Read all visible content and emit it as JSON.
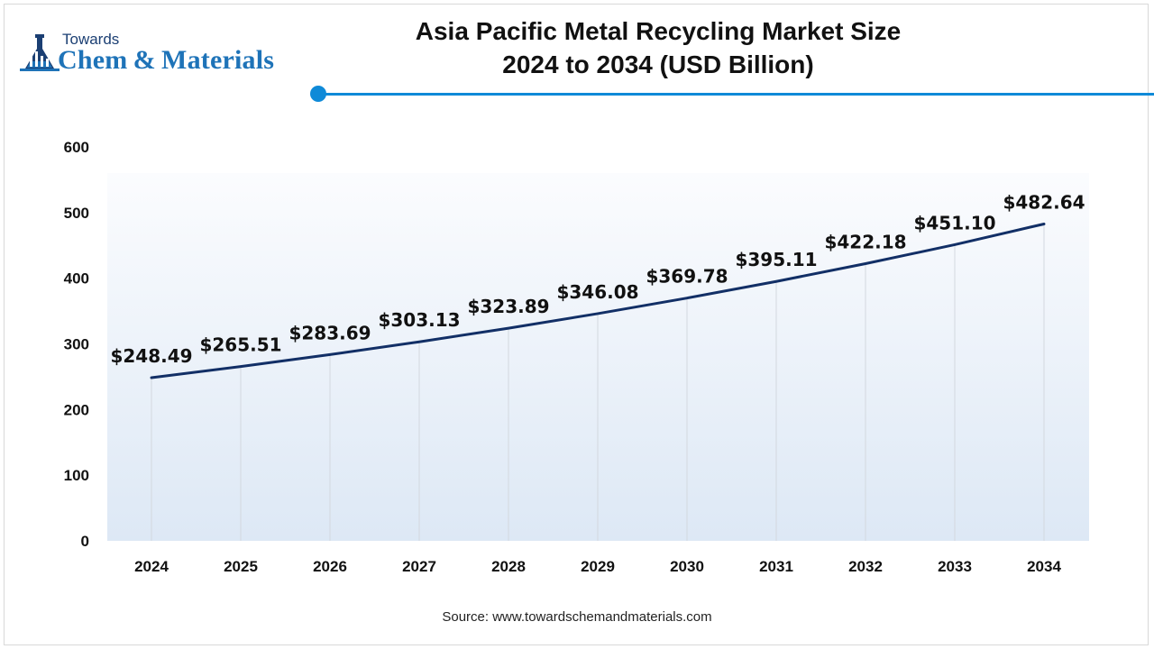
{
  "logo": {
    "towards": "Towards",
    "main": "Chem & Materials",
    "icon": "flask-tower-icon",
    "colors": {
      "dark": "#1b3f73",
      "light": "#1e73b8"
    }
  },
  "title_line1": "Asia Pacific Metal Recycling Market Size",
  "title_line2": "2024 to 2034 (USD Billion)",
  "source": "Source: www.towardschemandmaterials.com",
  "colors": {
    "line": "#122f66",
    "accent": "#0f8ad8",
    "plot_bg_top": "#fbfcfe",
    "plot_bg_bottom": "#dde8f5"
  },
  "chart_data": {
    "type": "line",
    "title": "Asia Pacific Metal Recycling Market Size 2024 to 2034 (USD Billion)",
    "xlabel": "",
    "ylabel": "",
    "categories": [
      "2024",
      "2025",
      "2026",
      "2027",
      "2028",
      "2029",
      "2030",
      "2031",
      "2032",
      "2033",
      "2034"
    ],
    "values": [
      248.49,
      265.51,
      283.69,
      303.13,
      323.89,
      346.08,
      369.78,
      395.11,
      422.18,
      451.1,
      482.64
    ],
    "data_labels": [
      "$248.49",
      "$265.51",
      "$283.69",
      "$303.13",
      "$323.89",
      "$346.08",
      "$369.78",
      "$395.11",
      "$422.18",
      "$451.10",
      "$482.64"
    ],
    "yticks": [
      0,
      100,
      200,
      300,
      400,
      500,
      600
    ],
    "ylim": [
      0,
      600
    ],
    "grid": "vertical-drop-lines",
    "legend": "none"
  }
}
